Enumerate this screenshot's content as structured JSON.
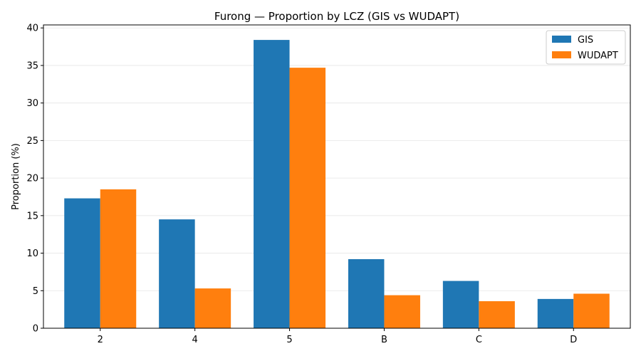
{
  "chart_data": {
    "type": "bar",
    "title": "Furong — Proportion by LCZ (GIS vs WUDAPT)",
    "xlabel": "",
    "ylabel": "Proportion (%)",
    "categories": [
      "2",
      "4",
      "5",
      "B",
      "C",
      "D"
    ],
    "series": [
      {
        "name": "GIS",
        "color": "#1f77b4",
        "values": [
          17.3,
          14.5,
          38.4,
          9.2,
          6.3,
          3.9
        ]
      },
      {
        "name": "WUDAPT",
        "color": "#ff7f0e",
        "values": [
          18.5,
          5.3,
          34.7,
          4.4,
          3.6,
          4.6
        ]
      }
    ],
    "ylim": [
      0,
      40.4
    ],
    "yticks": [
      0,
      5,
      10,
      15,
      20,
      25,
      30,
      35,
      40
    ],
    "grid": "y",
    "legend": "top-right"
  }
}
